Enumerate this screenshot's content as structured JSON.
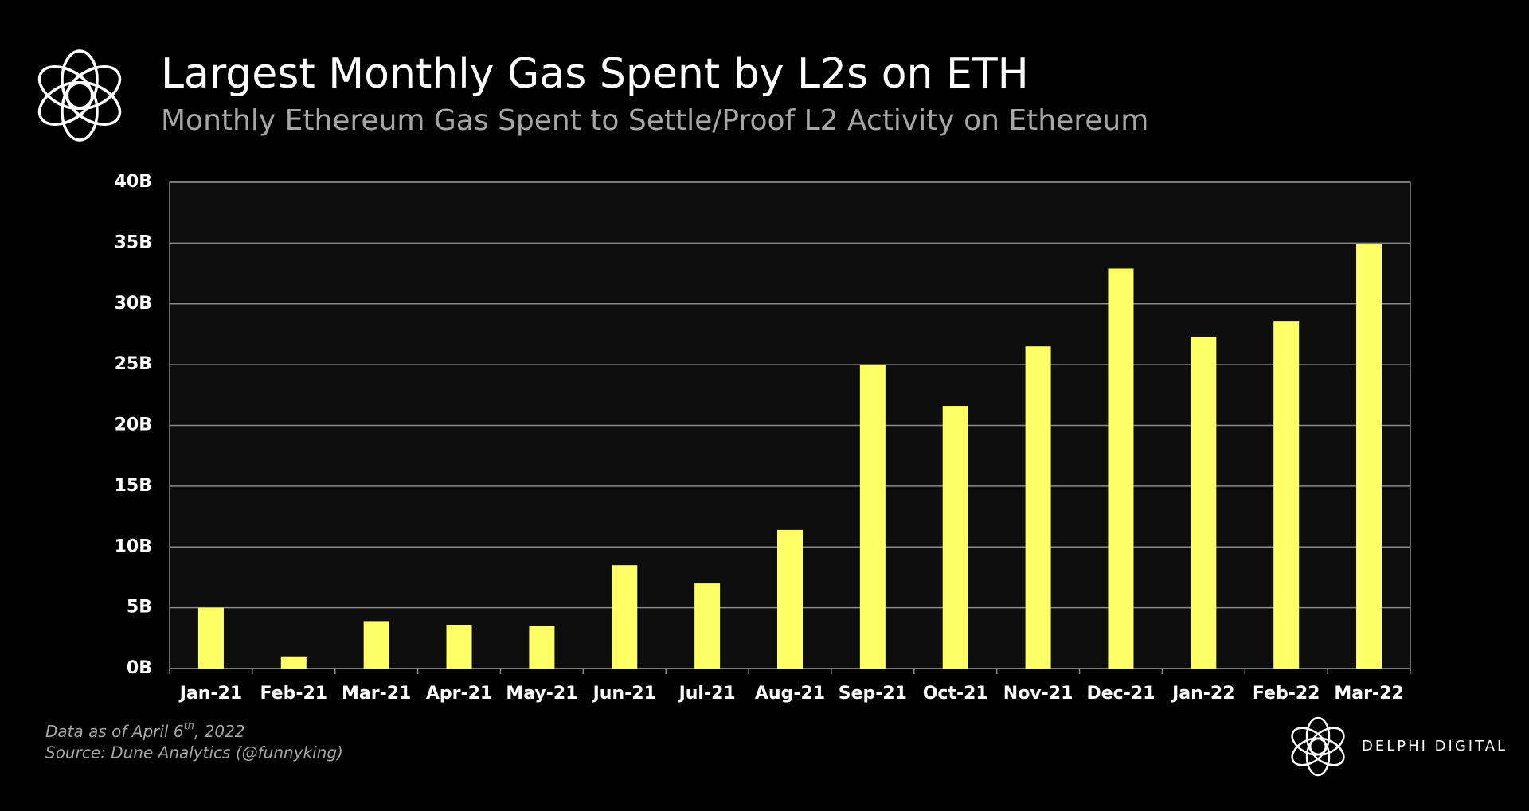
{
  "chart_data": {
    "type": "bar",
    "title": "Largest Monthly Gas Spent by L2s on ETH",
    "subtitle": "Monthly Ethereum Gas Spent to Settle/Proof L2 Activity on Ethereum",
    "categories": [
      "Jan-21",
      "Feb-21",
      "Mar-21",
      "Apr-21",
      "May-21",
      "Jun-21",
      "Jul-21",
      "Aug-21",
      "Sep-21",
      "Oct-21",
      "Nov-21",
      "Dec-21",
      "Jan-22",
      "Feb-22",
      "Mar-22"
    ],
    "values": [
      5000000000,
      1000000000,
      3900000000,
      3600000000,
      3500000000,
      8500000000,
      7000000000,
      11400000000,
      25000000000,
      21600000000,
      26500000000,
      32900000000,
      27300000000,
      28600000000,
      34900000000
    ],
    "color": "#ffff66",
    "ylim": [
      0,
      40000000000
    ],
    "yticks": [
      {
        "value": 0,
        "label": "0B"
      },
      {
        "value": 5000000000,
        "label": "5B"
      },
      {
        "value": 10000000000,
        "label": "10B"
      },
      {
        "value": 15000000000,
        "label": "15B"
      },
      {
        "value": 20000000000,
        "label": "20B"
      },
      {
        "value": 25000000000,
        "label": "25B"
      },
      {
        "value": 30000000000,
        "label": "30B"
      },
      {
        "value": 35000000000,
        "label": "35B"
      },
      {
        "value": 40000000000,
        "label": "40B"
      }
    ],
    "grid": true,
    "footnote": {
      "text": "Data as of April 6",
      "sup": "th",
      "rest": ", 2022"
    },
    "source": "Source: Dune Analytics (@funnyking)",
    "brand": "DELPHI DIGITAL"
  }
}
